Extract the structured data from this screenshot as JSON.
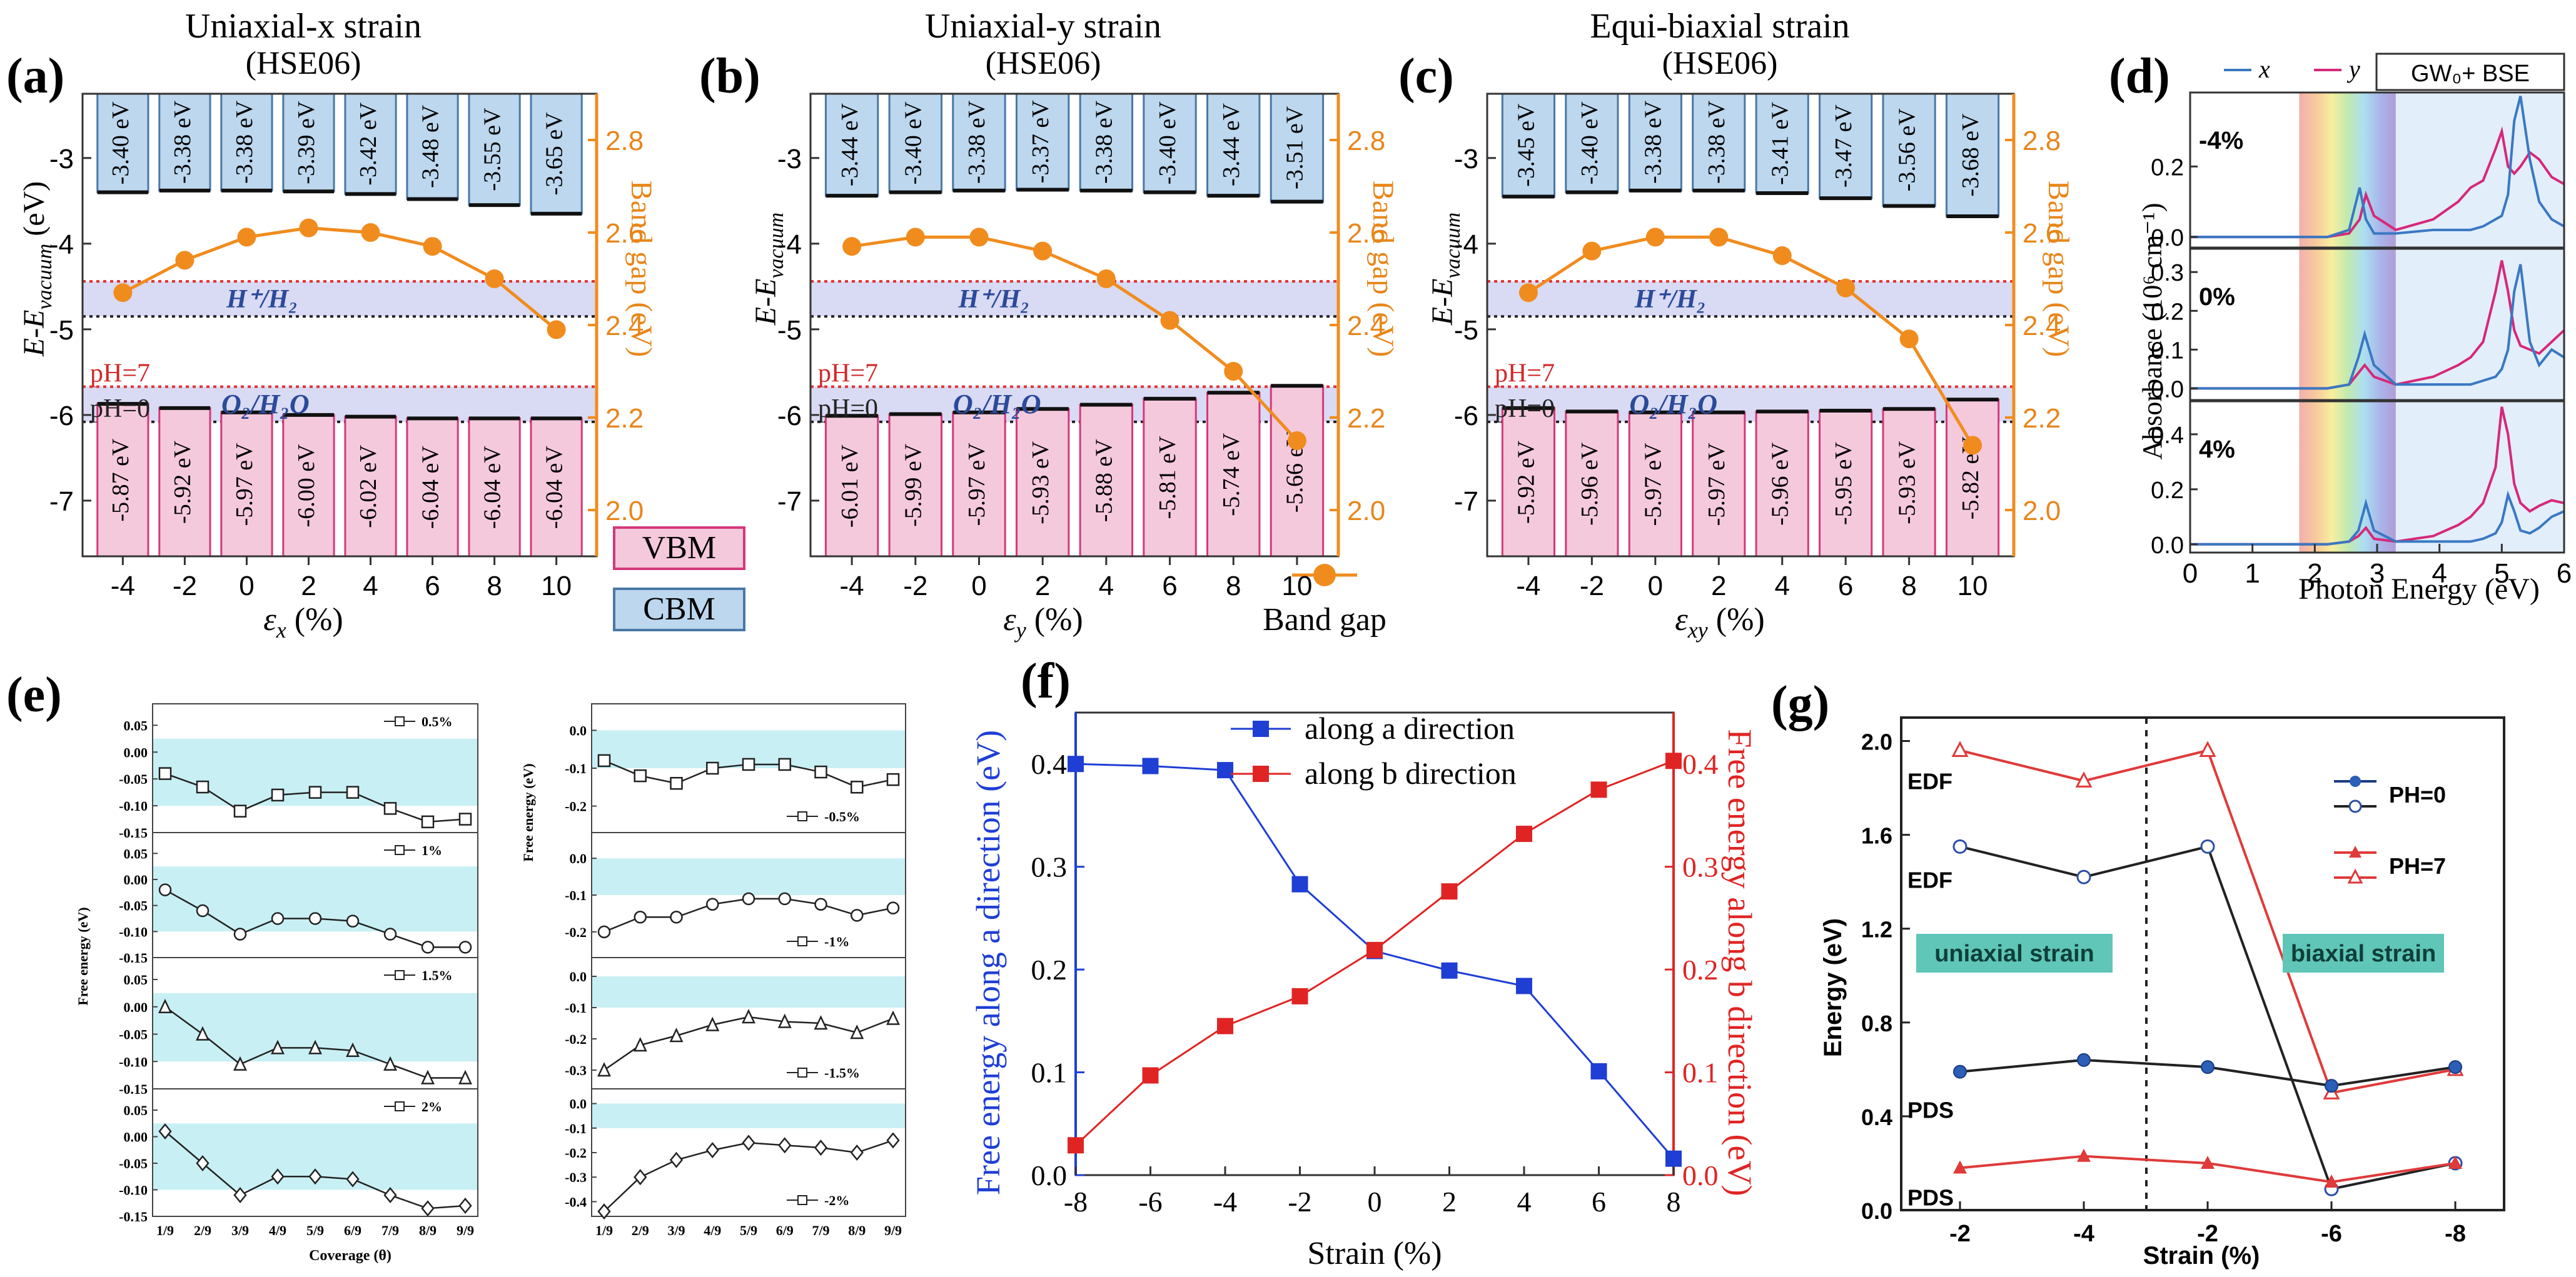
{
  "chart_data": [
    {
      "id": "a",
      "type": "bar",
      "panel_label": "(a)",
      "title": "Uniaxial-x strain",
      "subtitle": "(HSE06)",
      "xlabel_main": "ε",
      "xlabel_sub": "x",
      "xlabel_unit": " (%)",
      "ylabel": "E-E",
      "ylabel_sub": "vacuum",
      "ylabel_unit": " (eV)",
      "y2label": "Band gap (eV)",
      "xticks": [
        "-4",
        "-2",
        "0",
        "2",
        "4",
        "6",
        "8",
        "10"
      ],
      "yticks": [
        "-3",
        "-4",
        "-5",
        "-6",
        "-7"
      ],
      "y2ticks": [
        "2.8",
        "2.6",
        "2.4",
        "2.2",
        "2.0"
      ],
      "ylim": [
        -7.65,
        -2.25
      ],
      "y2lim": [
        1.9,
        2.9
      ],
      "x": [
        -4,
        -2,
        0,
        2,
        4,
        6,
        8,
        10
      ],
      "cbm": [
        -3.4,
        -3.38,
        -3.38,
        -3.39,
        -3.42,
        -3.48,
        -3.55,
        -3.65
      ],
      "cbm_labels": [
        "-3.40 eV",
        "-3.38 eV",
        "-3.38 eV",
        "-3.39 eV",
        "-3.42 eV",
        "-3.48 eV",
        "-3.55 eV",
        "-3.65 eV"
      ],
      "vbm": [
        -5.87,
        -5.92,
        -5.97,
        -6.0,
        -6.02,
        -6.04,
        -6.04,
        -6.04
      ],
      "vbm_labels": [
        "-5.87 eV",
        "-5.92 eV",
        "-5.97 eV",
        "-6.00 eV",
        "-6.02 eV",
        "-6.04 eV",
        "-6.04 eV",
        "-6.04 eV"
      ],
      "band_gap": [
        2.47,
        2.54,
        2.59,
        2.61,
        2.6,
        2.57,
        2.5,
        2.39
      ],
      "redox_h": -4.44,
      "redox_o": -5.67,
      "shift": -0.41,
      "label_h": "H⁺/H₂",
      "label_o": "O₂/H₂O",
      "label_ph7": "pH=7",
      "label_ph0": "pH=0"
    },
    {
      "id": "b",
      "type": "bar",
      "panel_label": "(b)",
      "title": "Uniaxial-y strain",
      "subtitle": "(HSE06)",
      "xlabel_main": "ε",
      "xlabel_sub": "y",
      "xlabel_unit": " (%)",
      "ylabel": "E-E",
      "ylabel_sub": "vacuum",
      "ylabel_unit": "",
      "y2label": "Band gap (eV)",
      "xticks": [
        "-4",
        "-2",
        "0",
        "2",
        "4",
        "6",
        "8",
        "10"
      ],
      "yticks": [
        "-3",
        "-4",
        "-5",
        "-6",
        "-7"
      ],
      "y2ticks": [
        "2.8",
        "2.6",
        "2.4",
        "2.2",
        "2.0"
      ],
      "ylim": [
        -7.65,
        -2.25
      ],
      "y2lim": [
        1.9,
        2.9
      ],
      "x": [
        -4,
        -2,
        0,
        2,
        4,
        6,
        8,
        10
      ],
      "cbm": [
        -3.44,
        -3.4,
        -3.38,
        -3.37,
        -3.38,
        -3.4,
        -3.44,
        -3.51
      ],
      "cbm_labels": [
        "-3.44 eV",
        "-3.40 eV",
        "-3.38 eV",
        "-3.37 eV",
        "-3.38 eV",
        "-3.40 eV",
        "-3.44 eV",
        "-3.51 eV"
      ],
      "vbm": [
        -6.01,
        -5.99,
        -5.97,
        -5.93,
        -5.88,
        -5.81,
        -5.74,
        -5.66
      ],
      "vbm_labels": [
        "-6.01 eV",
        "-5.99 eV",
        "-5.97 eV",
        "-5.93 eV",
        "-5.88 eV",
        "-5.81 eV",
        "-5.74 eV",
        "-5.66 eV"
      ],
      "band_gap": [
        2.57,
        2.59,
        2.59,
        2.56,
        2.5,
        2.41,
        2.3,
        2.15
      ],
      "redox_h": -4.44,
      "redox_o": -5.67,
      "shift": -0.41,
      "label_h": "H⁺/H₂",
      "label_o": "O₂/H₂O",
      "label_ph7": "pH=7",
      "label_ph0": "pH=0"
    },
    {
      "id": "c",
      "type": "bar",
      "panel_label": "(c)",
      "title": "Equi-biaxial strain",
      "subtitle": "(HSE06)",
      "xlabel_main": "ε",
      "xlabel_sub": "xy",
      "xlabel_unit": " (%)",
      "ylabel": "E-E",
      "ylabel_sub": "vacuum",
      "ylabel_unit": "",
      "y2label": "Band gap (eV)",
      "xticks": [
        "-4",
        "-2",
        "0",
        "2",
        "4",
        "6",
        "8",
        "10"
      ],
      "yticks": [
        "-3",
        "-4",
        "-5",
        "-6",
        "-7"
      ],
      "y2ticks": [
        "2.8",
        "2.6",
        "2.4",
        "2.2",
        "2.0"
      ],
      "ylim": [
        -7.65,
        -2.25
      ],
      "y2lim": [
        1.9,
        2.9
      ],
      "x": [
        -4,
        -2,
        0,
        2,
        4,
        6,
        8,
        10
      ],
      "cbm": [
        -3.45,
        -3.4,
        -3.38,
        -3.38,
        -3.41,
        -3.47,
        -3.56,
        -3.68
      ],
      "cbm_labels": [
        "-3.45 eV",
        "-3.40 eV",
        "-3.38 eV",
        "-3.38 eV",
        "-3.41 eV",
        "-3.47 eV",
        "-3.56 eV",
        "-3.68 eV"
      ],
      "vbm": [
        -5.92,
        -5.96,
        -5.97,
        -5.97,
        -5.96,
        -5.95,
        -5.93,
        -5.82
      ],
      "vbm_labels": [
        "-5.92 eV",
        "-5.96 eV",
        "-5.97 eV",
        "-5.97 eV",
        "-5.96 eV",
        "-5.95 eV",
        "-5.93 eV",
        "-5.82 eV"
      ],
      "band_gap": [
        2.47,
        2.56,
        2.59,
        2.59,
        2.55,
        2.48,
        2.37,
        2.14
      ],
      "redox_h": -4.44,
      "redox_o": -5.67,
      "shift": -0.41,
      "label_h": "H⁺/H₂",
      "label_o": "O₂/H₂O",
      "label_ph7": "pH=7",
      "label_ph0": "pH=0"
    },
    {
      "id": "legend_abc",
      "type": "legend",
      "vbm": "VBM",
      "cbm": "CBM",
      "band_gap": "Band gap",
      "colors": {
        "vbm_fill": "#f5c9dc",
        "vbm_edge": "#d6387a",
        "cbm_fill": "#bcd7ee",
        "cbm_edge": "#4a78a6",
        "gap": "#f08c1e"
      }
    },
    {
      "id": "d",
      "type": "line",
      "panel_label": "(d)",
      "legend": [
        "x",
        "y"
      ],
      "method": "GW₀+ BSE",
      "xlabel": "Photon Energy (eV)",
      "ylabel": "Absorbance  (10⁶ cm⁻¹)",
      "xlim": [
        0,
        6
      ],
      "xticks": [
        "0",
        "1",
        "2",
        "3",
        "4",
        "5",
        "6"
      ],
      "panels": [
        {
          "strain": "-4%",
          "ylim": [
            -0.03,
            0.41
          ],
          "yticks": [
            "0.0",
            "0.2"
          ],
          "x": [
            0,
            1.5,
            2.2,
            2.55,
            2.72,
            2.82,
            2.95,
            3.3,
            3.9,
            4.3,
            4.5,
            4.7,
            4.9,
            5.0,
            5.1,
            5.2,
            5.3,
            5.45,
            5.6,
            5.8,
            6.0
          ],
          "series_x": [
            0,
            0,
            0,
            0.02,
            0.14,
            0.05,
            0.01,
            0.01,
            0.02,
            0.02,
            0.02,
            0.03,
            0.05,
            0.06,
            0.12,
            0.33,
            0.4,
            0.22,
            0.1,
            0.05,
            0.03
          ],
          "series_y": [
            0,
            0,
            0,
            0.01,
            0.05,
            0.12,
            0.06,
            0.02,
            0.05,
            0.1,
            0.14,
            0.16,
            0.25,
            0.3,
            0.2,
            0.18,
            0.2,
            0.24,
            0.22,
            0.17,
            0.15
          ]
        },
        {
          "strain": "0%",
          "ylim": [
            -0.03,
            0.36
          ],
          "yticks": [
            "0.0",
            "0.1",
            "0.2",
            "0.3"
          ],
          "x": [
            0,
            1.5,
            2.2,
            2.55,
            2.7,
            2.8,
            2.95,
            3.3,
            3.9,
            4.3,
            4.5,
            4.7,
            4.9,
            5.0,
            5.1,
            5.2,
            5.3,
            5.45,
            5.6,
            5.8,
            6.0
          ],
          "series_x": [
            0,
            0,
            0,
            0.01,
            0.08,
            0.14,
            0.06,
            0.01,
            0.01,
            0.01,
            0.01,
            0.02,
            0.03,
            0.05,
            0.1,
            0.25,
            0.32,
            0.12,
            0.06,
            0.1,
            0.08
          ],
          "series_y": [
            0,
            0,
            0,
            0.01,
            0.04,
            0.06,
            0.03,
            0.01,
            0.03,
            0.06,
            0.08,
            0.12,
            0.25,
            0.33,
            0.25,
            0.15,
            0.11,
            0.1,
            0.09,
            0.12,
            0.15
          ]
        },
        {
          "strain": "4%",
          "ylim": [
            -0.03,
            0.52
          ],
          "yticks": [
            "0.0",
            "0.2",
            "0.4"
          ],
          "x": [
            0,
            1.5,
            2.2,
            2.55,
            2.7,
            2.82,
            2.95,
            3.3,
            3.9,
            4.3,
            4.5,
            4.7,
            4.9,
            5.0,
            5.1,
            5.2,
            5.3,
            5.45,
            5.6,
            5.8,
            6.0
          ],
          "series_x": [
            0,
            0,
            0,
            0.01,
            0.05,
            0.15,
            0.05,
            0.01,
            0.01,
            0.01,
            0.01,
            0.02,
            0.04,
            0.08,
            0.18,
            0.12,
            0.05,
            0.04,
            0.06,
            0.1,
            0.12
          ],
          "series_y": [
            0,
            0,
            0,
            0.01,
            0.03,
            0.06,
            0.02,
            0.01,
            0.03,
            0.07,
            0.1,
            0.15,
            0.28,
            0.5,
            0.4,
            0.22,
            0.15,
            0.12,
            0.14,
            0.16,
            0.15
          ]
        }
      ]
    },
    {
      "id": "e",
      "type": "line",
      "panel_label": "(e)",
      "xlabel": "Coverage (θ)",
      "ylabel": "Free energy (eV)",
      "xticks": [
        "1/9",
        "2/9",
        "3/9",
        "4/9",
        "5/9",
        "6/9",
        "7/9",
        "8/9",
        "9/9"
      ],
      "panels": [
        {
          "col": 0,
          "legend": "0.5%",
          "marker": "square",
          "ylim": [
            -0.15,
            0.09
          ],
          "yticks": [
            "0.05",
            "0.00",
            "-0.05",
            "-0.10",
            "-0.15"
          ],
          "band": [
            -0.1,
            0.025
          ],
          "values": [
            -0.04,
            -0.065,
            -0.11,
            -0.08,
            -0.075,
            -0.075,
            -0.105,
            -0.13,
            -0.125
          ]
        },
        {
          "col": 0,
          "legend": "1%",
          "marker": "circle",
          "ylim": [
            -0.15,
            0.09
          ],
          "yticks": [
            "0.05",
            "0.00",
            "-0.05",
            "-0.10",
            "-0.15"
          ],
          "band": [
            -0.1,
            0.025
          ],
          "values": [
            -0.02,
            -0.06,
            -0.105,
            -0.075,
            -0.075,
            -0.08,
            -0.105,
            -0.13,
            -0.13
          ]
        },
        {
          "col": 0,
          "legend": "1.5%",
          "marker": "triangle",
          "ylim": [
            -0.15,
            0.09
          ],
          "yticks": [
            "0.05",
            "0.00",
            "-0.05",
            "-0.10",
            "-0.15"
          ],
          "band": [
            -0.1,
            0.025
          ],
          "values": [
            0.0,
            -0.05,
            -0.105,
            -0.075,
            -0.075,
            -0.08,
            -0.105,
            -0.13,
            -0.13
          ]
        },
        {
          "col": 0,
          "legend": "2%",
          "marker": "diamond",
          "ylim": [
            -0.15,
            0.09
          ],
          "yticks": [
            "0.05",
            "0.00",
            "-0.05",
            "-0.10",
            "-0.15"
          ],
          "band": [
            -0.1,
            0.025
          ],
          "values": [
            0.01,
            -0.05,
            -0.11,
            -0.075,
            -0.075,
            -0.08,
            -0.11,
            -0.135,
            -0.13
          ]
        },
        {
          "col": 1,
          "legend": "-0.5%",
          "marker": "square",
          "ylim": [
            -0.27,
            0.07
          ],
          "yticks": [
            "0.0",
            "-0.1",
            "-0.2"
          ],
          "band": [
            -0.1,
            0.0
          ],
          "values": [
            -0.08,
            -0.12,
            -0.14,
            -0.1,
            -0.09,
            -0.09,
            -0.11,
            -0.15,
            -0.13
          ]
        },
        {
          "col": 1,
          "legend": "-1%",
          "marker": "circle",
          "ylim": [
            -0.27,
            0.07
          ],
          "yticks": [
            "0.0",
            "-0.1",
            "-0.2"
          ],
          "band": [
            -0.1,
            0.0
          ],
          "values": [
            -0.2,
            -0.16,
            -0.16,
            -0.125,
            -0.11,
            -0.11,
            -0.125,
            -0.155,
            -0.135
          ]
        },
        {
          "col": 1,
          "legend": "-1.5%",
          "marker": "triangle",
          "ylim": [
            -0.36,
            0.06
          ],
          "yticks": [
            "0.0",
            "-0.1",
            "-0.2",
            "-0.3"
          ],
          "band": [
            -0.1,
            0.0
          ],
          "values": [
            -0.3,
            -0.22,
            -0.19,
            -0.155,
            -0.13,
            -0.145,
            -0.15,
            -0.18,
            -0.135
          ]
        },
        {
          "col": 1,
          "legend": "-2%",
          "marker": "diamond",
          "ylim": [
            -0.46,
            0.06
          ],
          "yticks": [
            "0.0",
            "-0.1",
            "-0.2",
            "-0.3",
            "-0.4"
          ],
          "band": [
            -0.1,
            0.0
          ],
          "values": [
            -0.44,
            -0.3,
            -0.23,
            -0.19,
            -0.16,
            -0.17,
            -0.18,
            -0.2,
            -0.15
          ]
        }
      ]
    },
    {
      "id": "f",
      "type": "line",
      "panel_label": "(f)",
      "xlabel": "Strain (%)",
      "ylabel": "Free energy along a direction (eV)",
      "y2label": "Free energy along b direction (eV)",
      "x": [
        -8,
        -6,
        -4,
        -2,
        0,
        2,
        4,
        6,
        8
      ],
      "xticks": [
        "-8",
        "-6",
        "-4",
        "-2",
        "0",
        "2",
        "4",
        "6",
        "8"
      ],
      "yticks": [
        "0.0",
        "0.1",
        "0.2",
        "0.3",
        "0.4"
      ],
      "xlim": [
        -8,
        8
      ],
      "ylim": [
        0,
        0.45
      ],
      "series": [
        {
          "name": "along a direction",
          "color": "#1f3ed4",
          "values": [
            0.4,
            0.398,
            0.394,
            0.283,
            0.218,
            0.199,
            0.184,
            0.101,
            0.016
          ]
        },
        {
          "name": "along b direction",
          "color": "#e02424",
          "values": [
            0.029,
            0.097,
            0.145,
            0.174,
            0.219,
            0.276,
            0.332,
            0.375,
            0.403
          ]
        }
      ]
    },
    {
      "id": "g",
      "type": "line",
      "panel_label": "(g)",
      "xlabel": "Strain (%)",
      "ylabel": "Energy (eV)",
      "xticks": [
        "-2",
        "-4",
        "-2",
        "-6",
        "-8"
      ],
      "yticks": [
        "0.0",
        "0.4",
        "0.8",
        "1.2",
        "1.6",
        "2.0"
      ],
      "ylim": [
        0,
        2.1
      ],
      "legend": [
        "PH=0",
        "PH=7"
      ],
      "labels": {
        "edf_top": "EDF",
        "edf_mid": "EDF",
        "pds_mid": "PDS",
        "pds_bottom": "PDS",
        "uniaxial": "uniaxial strain",
        "biaxial": "biaxial strain"
      },
      "series": [
        {
          "name": "PH=7 EDF",
          "color": "#e03a3a",
          "marker": "open-triangle",
          "values": [
            1.96,
            1.83,
            1.96,
            0.5,
            0.6
          ]
        },
        {
          "name": "PH=0 EDF",
          "color": "#222222",
          "marker": "open-circle",
          "values": [
            1.55,
            1.42,
            1.55,
            0.09,
            0.2
          ]
        },
        {
          "name": "PH=0 PDS",
          "color": "#222222",
          "marker": "filled-circle",
          "values": [
            0.59,
            0.64,
            0.61,
            0.53,
            0.61
          ]
        },
        {
          "name": "PH=7 PDS",
          "color": "#e03a3a",
          "marker": "filled-triangle",
          "values": [
            0.18,
            0.23,
            0.2,
            0.12,
            0.2
          ]
        }
      ]
    }
  ]
}
